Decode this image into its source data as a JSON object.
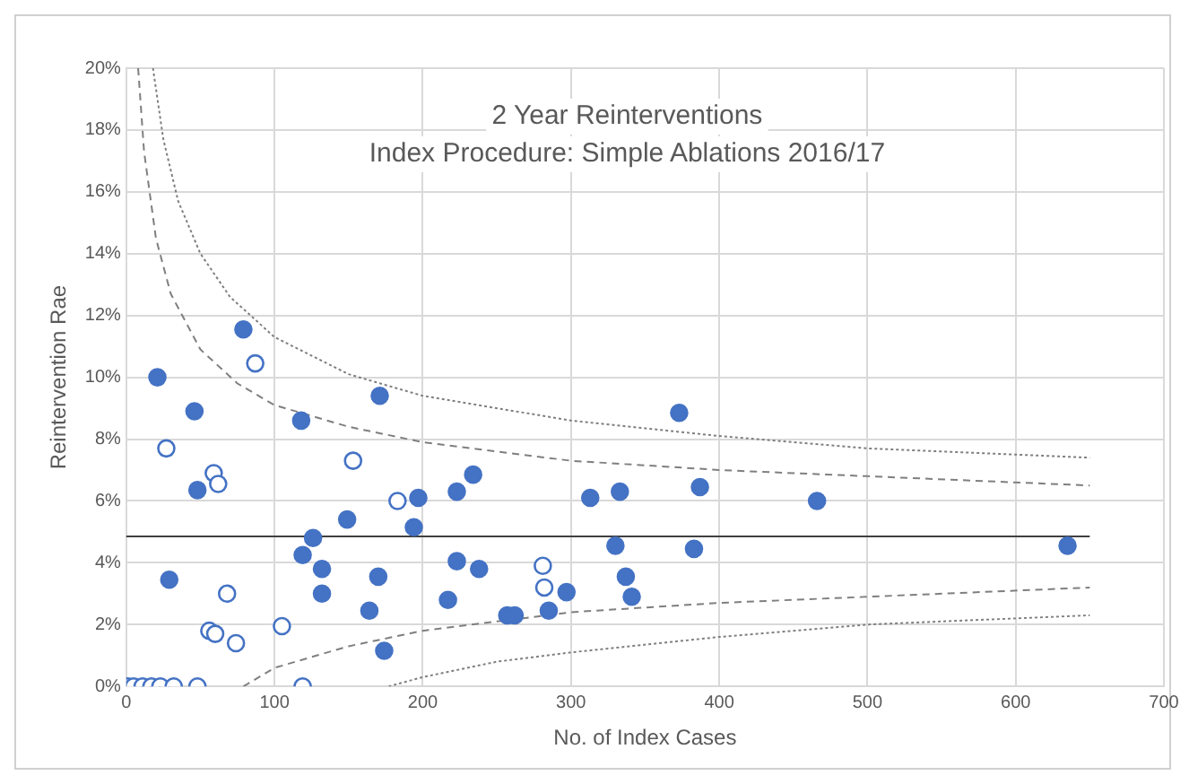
{
  "chart_data": {
    "type": "scatter",
    "title": "2 Year Reinterventions",
    "subtitle": "Index Procedure: Simple Ablations 2016/17",
    "xlabel": "No. of Index Cases",
    "ylabel": "Reintervention Rae",
    "series": [
      {
        "type": "line",
        "color": "#7f7f7f",
        "line_style": "dotted",
        "marker": "none",
        "x": [
          18,
          25,
          35,
          50,
          70,
          100,
          150,
          200,
          300,
          400,
          500,
          650
        ],
        "values": [
          20.0,
          17.7,
          15.7,
          14.0,
          12.6,
          11.3,
          10.1,
          9.4,
          8.6,
          8.1,
          7.7,
          7.4
        ]
      },
      {
        "type": "line",
        "color": "#7f7f7f",
        "line_style": "dashed",
        "marker": "none",
        "x": [
          8,
          12,
          20,
          30,
          50,
          75,
          100,
          150,
          200,
          300,
          400,
          500,
          650
        ],
        "values": [
          20.0,
          17.3,
          14.5,
          12.7,
          10.9,
          9.8,
          9.1,
          8.4,
          7.9,
          7.3,
          7.0,
          6.8,
          6.5
        ]
      },
      {
        "type": "line",
        "color": "#7f7f7f",
        "line_style": "dashed",
        "marker": "none",
        "x": [
          79,
          100,
          150,
          200,
          300,
          400,
          500,
          650
        ],
        "values": [
          0.0,
          0.6,
          1.3,
          1.8,
          2.4,
          2.7,
          2.9,
          3.2
        ]
      },
      {
        "type": "line",
        "color": "#7f7f7f",
        "line_style": "dotted",
        "marker": "none",
        "x": [
          177,
          200,
          250,
          300,
          400,
          500,
          650
        ],
        "values": [
          0.0,
          0.3,
          0.8,
          1.1,
          1.6,
          2.0,
          2.3
        ]
      },
      {
        "color": "#4472c4",
        "marker": "circle",
        "x": [
          21,
          46,
          48,
          29,
          79,
          118,
          171,
          126,
          119,
          132,
          132,
          149,
          170,
          164,
          174,
          197,
          194,
          223,
          234,
          223,
          238,
          217,
          257,
          262,
          285,
          297,
          313,
          333,
          330,
          337,
          341,
          373,
          387,
          383,
          466,
          635
        ],
        "values": [
          10.0,
          8.9,
          6.35,
          3.45,
          11.55,
          8.6,
          9.4,
          4.8,
          4.25,
          3.8,
          3.0,
          5.4,
          3.55,
          2.45,
          1.15,
          6.1,
          5.15,
          6.3,
          6.85,
          4.05,
          3.8,
          2.8,
          2.3,
          2.3,
          2.45,
          3.05,
          6.1,
          6.3,
          4.55,
          3.55,
          2.9,
          8.85,
          6.45,
          4.45,
          6.0,
          4.55
        ]
      },
      {
        "color": "#4472c4",
        "marker": "circle",
        "x": [
          87,
          27,
          59,
          62,
          153,
          183,
          68,
          56,
          60,
          74,
          105,
          119,
          281,
          282,
          1,
          5,
          11,
          17,
          23,
          32,
          48
        ],
        "values": [
          10.45,
          7.7,
          6.9,
          6.55,
          7.3,
          6.0,
          3.0,
          1.8,
          1.7,
          1.4,
          1.95,
          0,
          3.9,
          3.2,
          0,
          0,
          0,
          0,
          0,
          0,
          0
        ]
      }
    ],
    "ref_lines": [
      {
        "axis": "y",
        "value": 4.85,
        "color": "#404040",
        "line_style": "solid"
      }
    ],
    "xlim": [
      0,
      700
    ],
    "xticks": [
      0,
      100,
      200,
      300,
      400,
      500,
      600,
      700
    ],
    "ylim": [
      0,
      20
    ],
    "yticks": [
      {
        "value": 0,
        "label": "0%"
      },
      {
        "value": 2,
        "label": "2%"
      },
      {
        "value": 4,
        "label": "4%"
      },
      {
        "value": 6,
        "label": "6%"
      },
      {
        "value": 8,
        "label": "8%"
      },
      {
        "value": 10,
        "label": "10%"
      },
      {
        "value": 12,
        "label": "12%"
      },
      {
        "value": 14,
        "label": "14%"
      },
      {
        "value": 16,
        "label": "16%"
      },
      {
        "value": 18,
        "label": "18%"
      },
      {
        "value": 20,
        "label": "20%"
      }
    ],
    "grid": true,
    "legend": false
  }
}
